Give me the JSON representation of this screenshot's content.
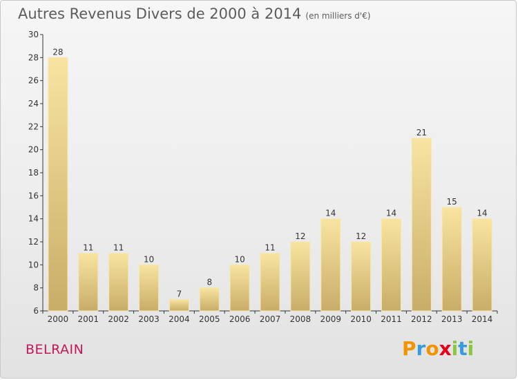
{
  "chart_data": {
    "type": "bar",
    "title": "Autres Revenus Divers de 2000 à 2014",
    "subtitle": "(en milliers d'€)",
    "categories": [
      "2000",
      "2001",
      "2002",
      "2003",
      "2004",
      "2005",
      "2006",
      "2007",
      "2008",
      "2009",
      "2010",
      "2011",
      "2012",
      "2013",
      "2014"
    ],
    "values": [
      28,
      11,
      11,
      10,
      7,
      8,
      10,
      11,
      12,
      14,
      12,
      14,
      21,
      15,
      14
    ],
    "ylim": [
      6,
      30
    ],
    "yticks": [
      6,
      8,
      10,
      12,
      14,
      16,
      18,
      20,
      22,
      24,
      26,
      28,
      30
    ],
    "grid": false,
    "xlabel": "",
    "ylabel": "",
    "bar_color": "#e6cf8a",
    "bar_edge_color": "#f5e7b3"
  },
  "location_label": "BELRAIN",
  "logo": {
    "text": "Proxiti",
    "letters": [
      "P",
      "r",
      "o",
      "x",
      "i",
      "t",
      "i"
    ],
    "colors": [
      "#f29400",
      "#3a9bd9",
      "#f29400",
      "#e2001a",
      "#8cc63f",
      "#3a9bd9",
      "#8cc63f"
    ]
  }
}
